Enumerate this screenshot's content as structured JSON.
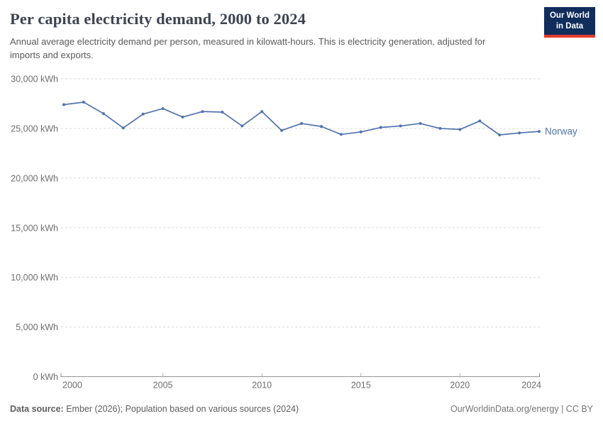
{
  "logo": {
    "line1": "Our World",
    "line2": "in Data",
    "bg_color": "#102d5c",
    "accent_color": "#e23d30"
  },
  "header": {
    "title": "Per capita electricity demand, 2000 to 2024",
    "subtitle": "Annual average electricity demand per person, measured in kilowatt-hours. This is electricity generation, adjusted for imports and exports."
  },
  "chart_data": {
    "type": "line",
    "title": "Per capita electricity demand, 2000 to 2024",
    "unit": "kWh",
    "x": [
      2000,
      2001,
      2002,
      2003,
      2004,
      2005,
      2006,
      2007,
      2008,
      2009,
      2010,
      2011,
      2012,
      2013,
      2014,
      2015,
      2016,
      2017,
      2018,
      2019,
      2020,
      2021,
      2022,
      2023,
      2024
    ],
    "series": [
      {
        "name": "Norway",
        "color": "#5073af",
        "values": [
          27400,
          27650,
          26500,
          25050,
          26450,
          27000,
          26150,
          26700,
          26650,
          25250,
          26700,
          24800,
          25500,
          25200,
          24400,
          24650,
          25100,
          25250,
          25500,
          25000,
          24900,
          25750,
          24350,
          24550,
          24700
        ]
      }
    ],
    "xlim": [
      2000,
      2024
    ],
    "ylim": [
      0,
      30000
    ],
    "grid": "horizontal-dashed",
    "legend_position": "right-of-line-end",
    "y_ticks": [
      {
        "value": 0,
        "label": "0 kWh"
      },
      {
        "value": 5000,
        "label": "5,000 kWh"
      },
      {
        "value": 10000,
        "label": "10,000 kWh"
      },
      {
        "value": 15000,
        "label": "15,000 kWh"
      },
      {
        "value": 20000,
        "label": "20,000 kWh"
      },
      {
        "value": 25000,
        "label": "25,000 kWh"
      },
      {
        "value": 30000,
        "label": "30,000 kWh"
      }
    ],
    "x_ticks": [
      {
        "value": 2000,
        "label": "2000"
      },
      {
        "value": 2005,
        "label": "2005"
      },
      {
        "value": 2010,
        "label": "2010"
      },
      {
        "value": 2015,
        "label": "2015"
      },
      {
        "value": 2020,
        "label": "2020"
      },
      {
        "value": 2024,
        "label": "2024"
      }
    ]
  },
  "footer": {
    "source_label": "Data source:",
    "source_text": " Ember (2026); Population based on various sources (2024)",
    "right": "OurWorldinData.org/energy | CC BY"
  }
}
